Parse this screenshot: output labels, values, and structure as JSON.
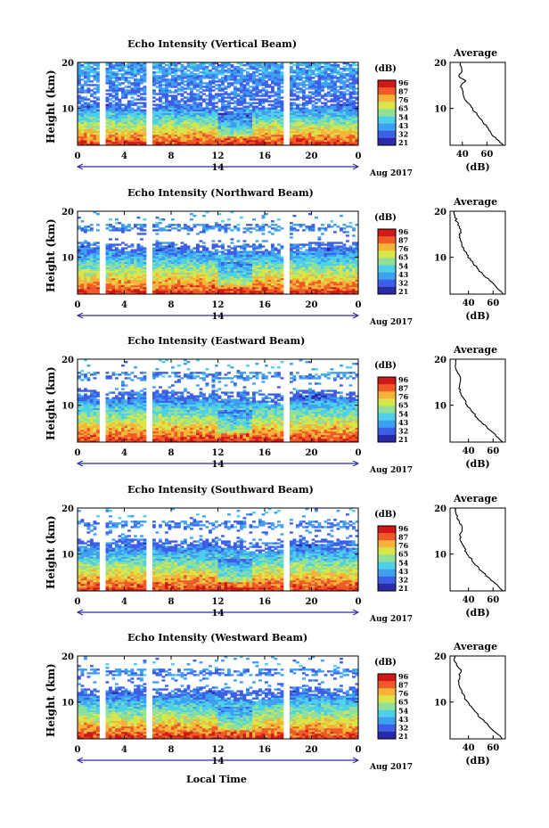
{
  "figure": {
    "xlabel": "Local Time",
    "date_label": "Aug 2017",
    "day_label": "14",
    "colorbar_unit": "(dB)",
    "profile_title": "Average",
    "profile_xlabel": "(dB)",
    "ylabel": "Height (km)"
  },
  "colors": {
    "scale": [
      "#2a2aa8",
      "#3c5fe6",
      "#3f9ff0",
      "#4dd0e8",
      "#8fe09a",
      "#d8e64a",
      "#f5b33a",
      "#f05a28",
      "#d01818"
    ]
  },
  "chart_data": [
    {
      "type": "heatmap",
      "title": "Echo Intensity (Vertical Beam)",
      "xlabel": "Local Time",
      "ylabel": "Height (km)",
      "xlim": [
        0,
        24
      ],
      "ylim": [
        2,
        20
      ],
      "x_ticks": [
        "0",
        "4",
        "8",
        "12",
        "16",
        "20",
        "0"
      ],
      "y_ticks": [
        "20",
        "10"
      ],
      "gaps_hours": [
        [
          2.0,
          2.5
        ],
        [
          5.9,
          6.4
        ],
        [
          17.7,
          18.0
        ]
      ],
      "colorbar": {
        "unit": "(dB)",
        "ticks": [
          "96",
          "87",
          "76",
          "65",
          "54",
          "43",
          "32",
          "21"
        ]
      },
      "profile": {
        "title": "Average",
        "xlabel": "(dB)",
        "x_ticks": [
          "40",
          "60"
        ],
        "xlim": [
          30,
          75
        ],
        "ylim": [
          2,
          20
        ],
        "heights": [
          2,
          3,
          4,
          5,
          6,
          7,
          8,
          9,
          10,
          11,
          12,
          13,
          14,
          15,
          16,
          17,
          18,
          19,
          20
        ],
        "values": [
          73,
          69,
          65,
          63,
          60,
          57,
          54,
          51,
          48,
          45,
          42,
          41,
          40,
          39,
          42,
          37,
          40,
          39,
          38
        ]
      }
    },
    {
      "type": "heatmap",
      "title": "Echo Intensity (Northward Beam)",
      "xlabel": "Local Time",
      "ylabel": "Height (km)",
      "xlim": [
        0,
        24
      ],
      "ylim": [
        2,
        20
      ],
      "x_ticks": [
        "0",
        "4",
        "8",
        "12",
        "16",
        "20",
        "0"
      ],
      "y_ticks": [
        "20",
        "10"
      ],
      "gaps_hours": [
        [
          2.0,
          2.5
        ],
        [
          5.9,
          6.4
        ],
        [
          17.7,
          18.0
        ]
      ],
      "colorbar": {
        "unit": "(dB)",
        "ticks": [
          "96",
          "87",
          "76",
          "65",
          "54",
          "43",
          "32",
          "21"
        ]
      },
      "profile": {
        "title": "Average",
        "xlabel": "(dB)",
        "x_ticks": [
          "40",
          "60"
        ],
        "xlim": [
          25,
          70
        ],
        "ylim": [
          2,
          20
        ],
        "heights": [
          2,
          3,
          4,
          5,
          6,
          7,
          8,
          9,
          10,
          11,
          12,
          13,
          14,
          15,
          16,
          17,
          18,
          19,
          20
        ],
        "values": [
          68,
          65,
          61,
          57,
          53,
          49,
          46,
          43,
          40,
          38,
          36,
          34,
          33,
          33,
          34,
          32,
          30,
          29,
          28
        ]
      }
    },
    {
      "type": "heatmap",
      "title": "Echo Intensity (Eastward Beam)",
      "xlabel": "Local Time",
      "ylabel": "Height (km)",
      "xlim": [
        0,
        24
      ],
      "ylim": [
        2,
        20
      ],
      "x_ticks": [
        "0",
        "4",
        "8",
        "12",
        "16",
        "20",
        "0"
      ],
      "y_ticks": [
        "20",
        "10"
      ],
      "gaps_hours": [
        [
          2.0,
          2.5
        ],
        [
          5.9,
          6.4
        ],
        [
          17.7,
          18.0
        ]
      ],
      "colorbar": {
        "unit": "(dB)",
        "ticks": [
          "96",
          "87",
          "76",
          "65",
          "54",
          "43",
          "32",
          "21"
        ]
      },
      "profile": {
        "title": "Average",
        "xlabel": "(dB)",
        "x_ticks": [
          "40",
          "60"
        ],
        "xlim": [
          25,
          70
        ],
        "ylim": [
          2,
          20
        ],
        "heights": [
          2,
          3,
          4,
          5,
          6,
          7,
          8,
          9,
          10,
          11,
          12,
          13,
          14,
          15,
          16,
          17,
          18,
          19,
          20
        ],
        "values": [
          68,
          64,
          60,
          56,
          52,
          48,
          45,
          42,
          39,
          37,
          35,
          33,
          33,
          33,
          34,
          31,
          30,
          30,
          29
        ]
      }
    },
    {
      "type": "heatmap",
      "title": "Echo Intensity (Southward Beam)",
      "xlabel": "Local Time",
      "ylabel": "Height (km)",
      "xlim": [
        0,
        24
      ],
      "ylim": [
        2,
        20
      ],
      "x_ticks": [
        "0",
        "4",
        "8",
        "12",
        "16",
        "20",
        "0"
      ],
      "y_ticks": [
        "20",
        "10"
      ],
      "gaps_hours": [
        [
          2.0,
          2.5
        ],
        [
          5.9,
          6.4
        ],
        [
          17.7,
          18.0
        ]
      ],
      "colorbar": {
        "unit": "(dB)",
        "ticks": [
          "96",
          "87",
          "76",
          "65",
          "54",
          "43",
          "32",
          "21"
        ]
      },
      "profile": {
        "title": "Average",
        "xlabel": "(dB)",
        "x_ticks": [
          "40",
          "60"
        ],
        "xlim": [
          25,
          70
        ],
        "ylim": [
          2,
          20
        ],
        "heights": [
          2,
          3,
          4,
          5,
          6,
          7,
          8,
          9,
          10,
          11,
          12,
          13,
          14,
          15,
          16,
          17,
          18,
          19,
          20
        ],
        "values": [
          68,
          64,
          60,
          56,
          52,
          48,
          45,
          42,
          39,
          37,
          35,
          34,
          33,
          34,
          35,
          32,
          31,
          30,
          29
        ]
      }
    },
    {
      "type": "heatmap",
      "title": "Echo Intensity (Westward Beam)",
      "xlabel": "Local Time",
      "ylabel": "Height (km)",
      "xlim": [
        0,
        24
      ],
      "ylim": [
        2,
        20
      ],
      "x_ticks": [
        "0",
        "4",
        "8",
        "12",
        "16",
        "20",
        "0"
      ],
      "y_ticks": [
        "20",
        "10"
      ],
      "gaps_hours": [
        [
          2.0,
          2.5
        ],
        [
          5.9,
          6.4
        ],
        [
          17.7,
          18.0
        ]
      ],
      "colorbar": {
        "unit": "(dB)",
        "ticks": [
          "96",
          "87",
          "76",
          "65",
          "54",
          "43",
          "32",
          "21"
        ]
      },
      "profile": {
        "title": "Average",
        "xlabel": "(dB)",
        "x_ticks": [
          "40",
          "60"
        ],
        "xlim": [
          25,
          70
        ],
        "ylim": [
          2,
          20
        ],
        "heights": [
          2,
          3,
          4,
          5,
          6,
          7,
          8,
          9,
          10,
          11,
          12,
          13,
          14,
          15,
          16,
          17,
          18,
          19,
          20
        ],
        "values": [
          68,
          64,
          60,
          56,
          52,
          48,
          45,
          42,
          39,
          37,
          35,
          33,
          32,
          32,
          33,
          34,
          30,
          29,
          28
        ]
      }
    }
  ]
}
